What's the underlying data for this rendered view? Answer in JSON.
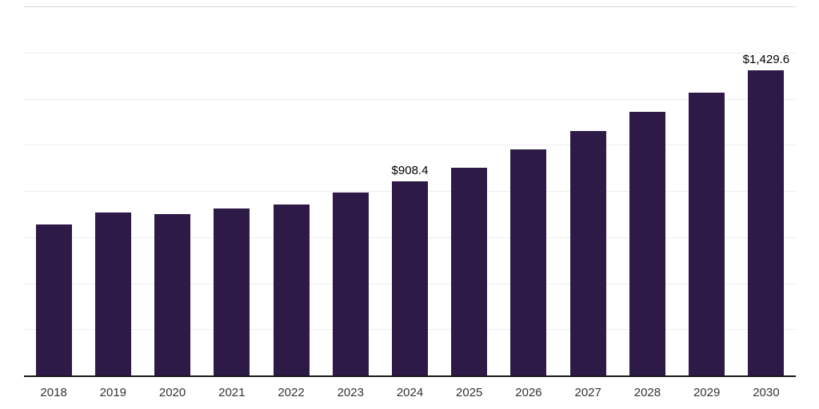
{
  "chart_data": {
    "type": "bar",
    "title": "",
    "xlabel": "",
    "ylabel": "",
    "categories": [
      "2018",
      "2019",
      "2020",
      "2021",
      "2022",
      "2023",
      "2024",
      "2025",
      "2026",
      "2027",
      "2028",
      "2029",
      "2030"
    ],
    "values": [
      706,
      765,
      758,
      781,
      800,
      856,
      908.4,
      975,
      1061,
      1147,
      1237,
      1327,
      1429.6
    ],
    "data_labels": {
      "2024": "$908.4",
      "2030": "$1,429.6"
    },
    "ylim": [
      0,
      1730
    ],
    "grid": "horizontal",
    "legend": "none",
    "bar_color": "#2e1a47",
    "axis_line_color": "#1a1a1a",
    "gridline_color": "#ededed",
    "top_border_color": "#d6d6d6",
    "value_label_color": "#000000",
    "tick_label_color": "#333333"
  }
}
